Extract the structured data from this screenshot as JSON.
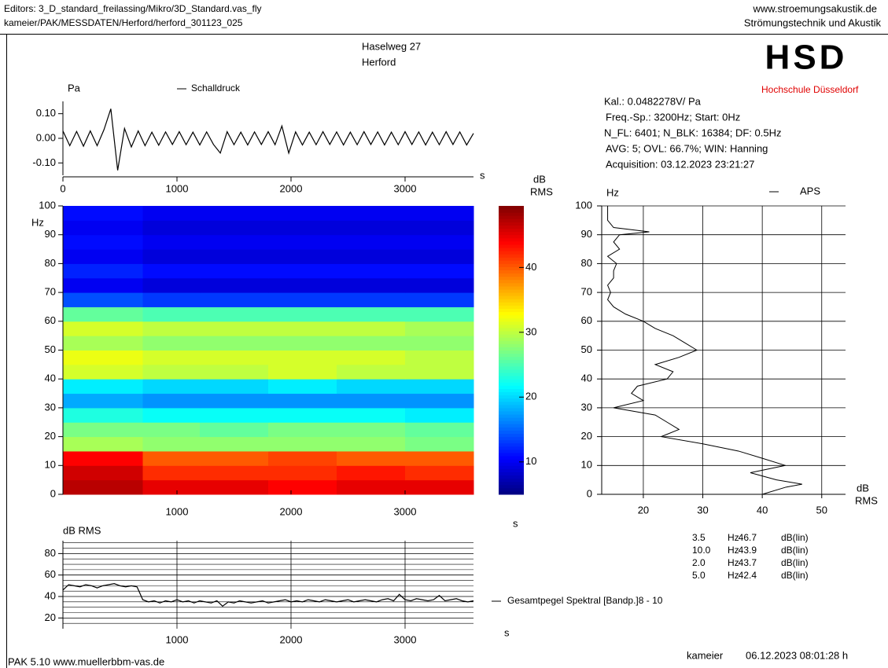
{
  "header": {
    "left": [
      "Editors: 3_D_standard_freilassing/Mikro/3D_Standard.vas_fly",
      "kameier/PAK/MESSDATEN/Herford/herford_301123_025"
    ],
    "right": [
      "www.stroemungsakustik.de",
      "Strömungstechnik und Akustik"
    ],
    "title": [
      "Haselweg 27",
      "Herford"
    ]
  },
  "logo": {
    "text": "HSD",
    "subtitle": "Hochschule  Düsseldorf"
  },
  "info": [
    "Kal.: 0.0482278V/ Pa",
    "Freq.-Sp.: 3200Hz; Start: 0Hz",
    "N_FL: 6401; N_BLK: 16384; DF: 0.5Hz",
    "AVG: 5; OVL: 66.7%; WIN: Hanning",
    "Acquisition: 03.12.2023 23:21:27"
  ],
  "footer": {
    "left": "PAK 5.10 www.muellerbbm-vas.de",
    "user": "kameier",
    "date": "06.12.2023 08:01:28 h"
  },
  "chart_data": [
    {
      "type": "line",
      "y_label": "Pa",
      "x_label": "s",
      "x": [
        0,
        60,
        120,
        180,
        240,
        300,
        360,
        420,
        480,
        540,
        600,
        660,
        720,
        780,
        840,
        900,
        960,
        1020,
        1080,
        1140,
        1200,
        1260,
        1320,
        1380,
        1440,
        1500,
        1560,
        1620,
        1680,
        1740,
        1800,
        1860,
        1920,
        1980,
        2040,
        2100,
        2160,
        2220,
        2280,
        2340,
        2400,
        2460,
        2520,
        2580,
        2640,
        2700,
        2760,
        2820,
        2880,
        2940,
        3000,
        3060,
        3120,
        3180,
        3240,
        3300,
        3360,
        3420,
        3480,
        3540,
        3600
      ],
      "series": [
        {
          "name": "Schalldruck",
          "color": "#000000",
          "values": [
            0.03,
            -0.03,
            0.028,
            -0.032,
            0.03,
            -0.03,
            0.035,
            0.12,
            -0.13,
            0.04,
            -0.035,
            0.03,
            -0.03,
            0.025,
            -0.028,
            0.026,
            -0.025,
            0.027,
            -0.026,
            0.025,
            -0.027,
            0.026,
            -0.025,
            -0.06,
            0.027,
            -0.026,
            0.025,
            -0.027,
            0.026,
            -0.025,
            0.027,
            -0.026,
            0.05,
            -0.06,
            0.026,
            -0.027,
            0.025,
            -0.026,
            0.027,
            -0.025,
            0.026,
            -0.027,
            0.025,
            -0.026,
            0.027,
            -0.025,
            0.026,
            -0.027,
            0.025,
            -0.026,
            0.027,
            -0.025,
            0.026,
            -0.027,
            0.025,
            -0.026,
            0.027,
            -0.025,
            0.026,
            -0.027,
            0.02
          ]
        }
      ],
      "xlim": [
        0,
        3600
      ],
      "xticks": [
        0,
        1000,
        2000,
        3000
      ],
      "ylim": [
        -0.15,
        0.15
      ],
      "yticks": [
        {
          "value": 0.1,
          "label": "0.10"
        },
        {
          "value": 0,
          "label": "0.00"
        },
        {
          "value": -0.1,
          "label": "-0.10"
        }
      ]
    },
    {
      "type": "heatmap",
      "y_label": "Hz",
      "x_label": "s",
      "colorbar_label": [
        "dB",
        "RMS"
      ],
      "colormap": "jet",
      "xbins": [
        0,
        700,
        1200,
        1800,
        2400,
        3000,
        3600
      ],
      "ybins": [
        0,
        5,
        10,
        15,
        20,
        25,
        30,
        35,
        40,
        45,
        50,
        55,
        60,
        65,
        70,
        75,
        80,
        85,
        90,
        95,
        100
      ],
      "z": [
        [
          47,
          45,
          45,
          44,
          45,
          45
        ],
        [
          46,
          42,
          42,
          42,
          43,
          42
        ],
        [
          44,
          40,
          40,
          41,
          40,
          40
        ],
        [
          29,
          28,
          28,
          28,
          28,
          27
        ],
        [
          27,
          27,
          26,
          27,
          27,
          26
        ],
        [
          23,
          22,
          22,
          22,
          22,
          21
        ],
        [
          18,
          17,
          17,
          17,
          17,
          17
        ],
        [
          21,
          20,
          20,
          21,
          20,
          20
        ],
        [
          31,
          30,
          30,
          31,
          30,
          30
        ],
        [
          32,
          31,
          31,
          31,
          31,
          30
        ],
        [
          29,
          28,
          28,
          28,
          28,
          28
        ],
        [
          31,
          30,
          30,
          30,
          30,
          29
        ],
        [
          26,
          25,
          25,
          25,
          25,
          25
        ],
        [
          14,
          13,
          13,
          13,
          13,
          13
        ],
        [
          10,
          9,
          9,
          9,
          9,
          9
        ],
        [
          12,
          11,
          11,
          11,
          11,
          11
        ],
        [
          10,
          9,
          9,
          9,
          9,
          9
        ],
        [
          11,
          10,
          10,
          10,
          10,
          10
        ],
        [
          10,
          9,
          9,
          9,
          9,
          9
        ],
        [
          11,
          10,
          10,
          10,
          10,
          10
        ]
      ],
      "xlim": [
        0,
        3600
      ],
      "xticks": [
        1000,
        2000,
        3000
      ],
      "ylim": [
        0,
        100
      ],
      "yticks": [
        0,
        10,
        20,
        30,
        40,
        50,
        60,
        70,
        80,
        90,
        100
      ],
      "zlim": [
        5,
        49.5
      ],
      "zticks": [
        10,
        20,
        30,
        40
      ]
    },
    {
      "type": "line",
      "orientation": "horizontal",
      "y_label": "Hz",
      "x_label": [
        "dB",
        "RMS"
      ],
      "grid": true,
      "y": [
        0,
        2.5,
        3.5,
        5,
        7.5,
        10,
        12.5,
        15,
        17.5,
        20,
        22.5,
        25,
        27.5,
        30,
        32.5,
        35,
        37.5,
        40,
        42.5,
        45,
        47.5,
        50,
        52.5,
        55,
        57.5,
        60,
        62.5,
        65,
        67.5,
        70,
        72.5,
        75,
        77.5,
        80,
        82.5,
        85,
        87.5,
        90,
        91,
        92.5,
        95,
        97.5,
        100
      ],
      "series": [
        {
          "name": "APS",
          "color": "#000000",
          "values": [
            40,
            44,
            46.7,
            42.4,
            38,
            43.9,
            40,
            36,
            30,
            23,
            26,
            24,
            22,
            15,
            20,
            18,
            19,
            24,
            25,
            22,
            26,
            29,
            27,
            25,
            22,
            20,
            17,
            15,
            14,
            14.5,
            14,
            15,
            15,
            15.5,
            14,
            16,
            15,
            16,
            21,
            15,
            14,
            14,
            14
          ]
        }
      ],
      "xlim": [
        13,
        54
      ],
      "xticks": [
        20,
        30,
        40,
        50
      ],
      "ylim": [
        0,
        100
      ],
      "yticks": [
        0,
        10,
        20,
        30,
        40,
        50,
        60,
        70,
        80,
        90,
        100
      ],
      "peak_table": [
        [
          "3.5",
          "Hz",
          "46.7",
          "dB(lin)"
        ],
        [
          "10.0",
          "Hz",
          "43.9",
          "dB(lin)"
        ],
        [
          "2.0",
          "Hz",
          "43.7",
          "dB(lin)"
        ],
        [
          "5.0",
          "Hz",
          "42.4",
          "dB(lin)"
        ]
      ]
    },
    {
      "type": "line",
      "y_label": "dB RMS",
      "x_label": "s",
      "grid": true,
      "x": [
        0,
        50,
        100,
        150,
        200,
        250,
        300,
        350,
        400,
        450,
        500,
        550,
        600,
        650,
        700,
        750,
        800,
        850,
        900,
        950,
        1000,
        1050,
        1100,
        1150,
        1200,
        1250,
        1300,
        1350,
        1400,
        1450,
        1500,
        1550,
        1600,
        1650,
        1700,
        1750,
        1800,
        1850,
        1900,
        1950,
        2000,
        2050,
        2100,
        2150,
        2200,
        2250,
        2300,
        2350,
        2400,
        2450,
        2500,
        2550,
        2600,
        2650,
        2700,
        2750,
        2800,
        2850,
        2900,
        2950,
        3000,
        3050,
        3100,
        3150,
        3200,
        3250,
        3300,
        3350,
        3400,
        3450,
        3500,
        3550,
        3600
      ],
      "series": [
        {
          "name": "Gesamtpegel Spektral [Bandp.]8 - 10",
          "color": "#000000",
          "values": [
            46,
            51,
            50,
            49,
            51,
            50,
            48,
            50,
            51,
            52,
            50,
            49,
            50,
            49,
            37,
            35,
            36,
            34,
            36,
            35,
            37,
            35,
            36,
            34,
            36,
            35,
            34,
            36,
            31,
            35,
            34,
            36,
            35,
            34,
            35,
            36,
            34,
            35,
            36,
            37,
            35,
            36,
            35,
            37,
            36,
            35,
            37,
            36,
            35,
            36,
            37,
            35,
            36,
            37,
            36,
            35,
            37,
            38,
            36,
            42,
            37,
            36,
            38,
            37,
            36,
            37,
            41,
            36,
            37,
            38,
            36,
            35,
            36
          ]
        }
      ],
      "xlim": [
        0,
        3600
      ],
      "xticks": [
        1000,
        2000,
        3000
      ],
      "ylim": [
        10,
        92
      ],
      "yticks": [
        20,
        40,
        60,
        80
      ],
      "minor_yticks": [
        15,
        25,
        30,
        35,
        45,
        50,
        55,
        65,
        70,
        75,
        85,
        90
      ]
    }
  ]
}
